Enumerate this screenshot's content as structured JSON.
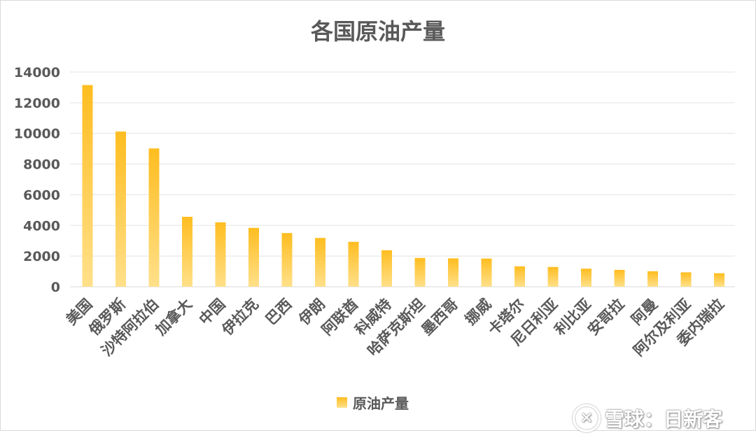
{
  "chart_data": {
    "type": "bar",
    "title": "各国原油产量",
    "xlabel": "",
    "ylabel": "",
    "ylim": [
      0,
      14000
    ],
    "yticks": [
      0,
      2000,
      4000,
      6000,
      8000,
      10000,
      12000,
      14000
    ],
    "grid": true,
    "legend_position": "bottom",
    "categories": [
      "美国",
      "俄罗斯",
      "沙特阿拉伯",
      "加拿大",
      "中国",
      "伊拉克",
      "巴西",
      "伊朗",
      "阿联酋",
      "科威特",
      "哈萨克斯坦",
      "墨西哥",
      "挪威",
      "卡塔尔",
      "尼日利亚",
      "利比亚",
      "安哥拉",
      "阿曼",
      "阿尔及利亚",
      "委内瑞拉"
    ],
    "series": [
      {
        "name": "原油产量",
        "color_top": "#ffbd20",
        "color_bottom": "#ffe08a",
        "values": [
          13150,
          10120,
          9020,
          4560,
          4200,
          3840,
          3500,
          3180,
          2930,
          2380,
          1880,
          1850,
          1840,
          1330,
          1290,
          1180,
          1100,
          1010,
          940,
          880
        ]
      }
    ]
  },
  "watermark": {
    "icon": "snowball-logo-icon",
    "text": "雪球：日新客"
  }
}
